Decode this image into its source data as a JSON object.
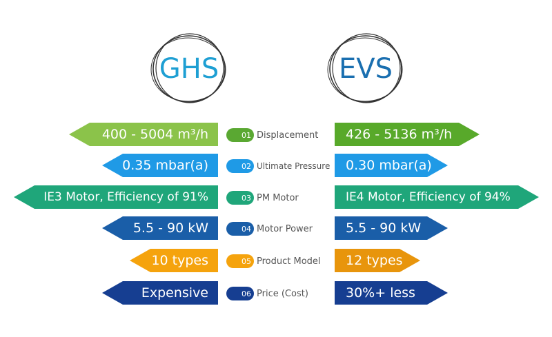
{
  "left_logo": {
    "text": "GHS",
    "color": "#1e9fd3"
  },
  "right_logo": {
    "text": "EVS",
    "color": "#1a6fb0"
  },
  "rows": [
    {
      "number": "01",
      "label": "Displacement",
      "left": "400 - 5004 m³/h",
      "right": "426 - 5136 m³/h",
      "left_color": "#8bc34a",
      "right_color": "#58a92a",
      "badge_color": "#5aa832"
    },
    {
      "number": "02",
      "label": "Ultimate Pressure",
      "left": "0.35 mbar(a)",
      "right": "0.30 mbar(a)",
      "left_color": "#1f9ae6",
      "right_color": "#1f9ae6",
      "badge_color": "#1f9ae6"
    },
    {
      "number": "03",
      "label": "PM Motor",
      "left": "IE3 Motor, Efficiency of 91%",
      "right": "IE4 Motor, Efficiency of 94%",
      "left_color": "#1fa67a",
      "right_color": "#1fa67a",
      "badge_color": "#1fa67a"
    },
    {
      "number": "04",
      "label": "Motor Power",
      "left": "5.5 - 90 kW",
      "right": "5.5 - 90 kW",
      "left_color": "#1a5ea8",
      "right_color": "#1a5ea8",
      "badge_color": "#1a5ea8"
    },
    {
      "number": "05",
      "label": "Product Model",
      "left": "10 types",
      "right": "12 types",
      "left_color": "#f5a30d",
      "right_color": "#e8950c",
      "badge_color": "#f5a30d"
    },
    {
      "number": "06",
      "label": "Price (Cost)",
      "left": "Expensive",
      "right": "30%+ less",
      "left_color": "#163e91",
      "right_color": "#163e91",
      "badge_color": "#163e91"
    }
  ]
}
